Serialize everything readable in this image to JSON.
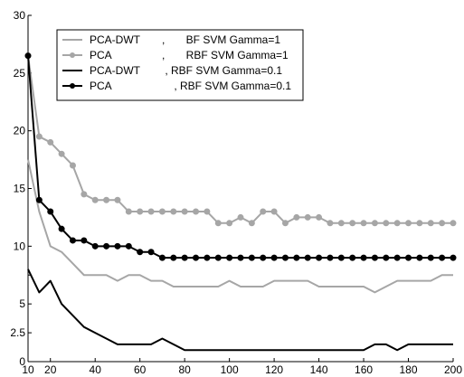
{
  "chart_data": {
    "type": "line",
    "title": "",
    "xlabel": "",
    "ylabel": "",
    "xlim": [
      10,
      200
    ],
    "ylim": [
      0,
      30
    ],
    "grid": false,
    "legend_position": "top-left",
    "x_ticks": [
      {
        "value": 10,
        "label": "10"
      },
      {
        "value": 20,
        "label": "20"
      },
      {
        "value": 40,
        "label": "40"
      },
      {
        "value": 60,
        "label": "60"
      },
      {
        "value": 80,
        "label": "80"
      },
      {
        "value": 100,
        "label": "100"
      },
      {
        "value": 120,
        "label": "120"
      },
      {
        "value": 140,
        "label": "140"
      },
      {
        "value": 160,
        "label": "160"
      },
      {
        "value": 180,
        "label": "180"
      },
      {
        "value": 200,
        "label": "200"
      }
    ],
    "y_ticks": [
      {
        "value": 0,
        "label": "0"
      },
      {
        "value": 2.5,
        "label": "2.5"
      },
      {
        "value": 5,
        "label": "5"
      },
      {
        "value": 7.5,
        "label": ""
      },
      {
        "value": 10,
        "label": "10"
      },
      {
        "value": 15,
        "label": "15"
      },
      {
        "value": 20,
        "label": "20"
      },
      {
        "value": 25,
        "label": "25"
      },
      {
        "value": 30,
        "label": "30"
      }
    ],
    "x": [
      10,
      15,
      20,
      25,
      30,
      35,
      40,
      45,
      50,
      55,
      60,
      65,
      70,
      75,
      80,
      85,
      90,
      95,
      100,
      105,
      110,
      115,
      120,
      125,
      130,
      135,
      140,
      145,
      150,
      155,
      160,
      165,
      170,
      175,
      180,
      185,
      190,
      195,
      200
    ],
    "series": [
      {
        "name": "PCA-DWT , BF SVM Gamma=1",
        "legend_left": "PCA-DWT",
        "legend_right": ",       BF SVM Gamma=1",
        "color": "#a6a6a6",
        "markers": false,
        "values": [
          17.5,
          13,
          10,
          9.5,
          8.5,
          7.5,
          7.5,
          7.5,
          7,
          7.5,
          7.5,
          7,
          7,
          6.5,
          6.5,
          6.5,
          6.5,
          6.5,
          7,
          6.5,
          6.5,
          6.5,
          7,
          7,
          7,
          7,
          6.5,
          6.5,
          6.5,
          6.5,
          6.5,
          6,
          6.5,
          7,
          7,
          7,
          7,
          7.5,
          7.5
        ]
      },
      {
        "name": "PCA , RBF SVM Gamma=1",
        "legend_left": "PCA",
        "legend_right": ",       RBF SVM Gamma=1",
        "color": "#a6a6a6",
        "markers": true,
        "values": [
          26.5,
          19.5,
          19,
          18,
          17,
          14.5,
          14,
          14,
          14,
          13,
          13,
          13,
          13,
          13,
          13,
          13,
          13,
          12,
          12,
          12.5,
          12,
          13,
          13,
          12,
          12.5,
          12.5,
          12.5,
          12,
          12,
          12,
          12,
          12,
          12,
          12,
          12,
          12,
          12,
          12,
          12
        ]
      },
      {
        "name": "PCA-DWT , RBF SVM Gamma=0.1",
        "legend_left": "PCA-DWT",
        "legend_right": " , RBF SVM Gamma=0.1",
        "color": "#000000",
        "markers": false,
        "values": [
          8,
          6,
          7,
          5,
          4,
          3,
          2.5,
          2,
          1.5,
          1.5,
          1.5,
          1.5,
          2,
          1.5,
          1,
          1,
          1,
          1,
          1,
          1,
          1,
          1,
          1,
          1,
          1,
          1,
          1,
          1,
          1,
          1,
          1,
          1.5,
          1.5,
          1,
          1.5,
          1.5,
          1.5,
          1.5,
          1.5
        ]
      },
      {
        "name": "PCA , RBF SVM Gamma=0.1",
        "legend_left": "PCA",
        "legend_right": "    , RBF SVM Gamma=0.1",
        "color": "#000000",
        "markers": true,
        "values": [
          26.5,
          14,
          13,
          11.5,
          10.5,
          10.5,
          10,
          10,
          10,
          10,
          9.5,
          9.5,
          9,
          9,
          9,
          9,
          9,
          9,
          9,
          9,
          9,
          9,
          9,
          9,
          9,
          9,
          9,
          9,
          9,
          9,
          9,
          9,
          9,
          9,
          9,
          9,
          9,
          9,
          9
        ]
      }
    ]
  }
}
